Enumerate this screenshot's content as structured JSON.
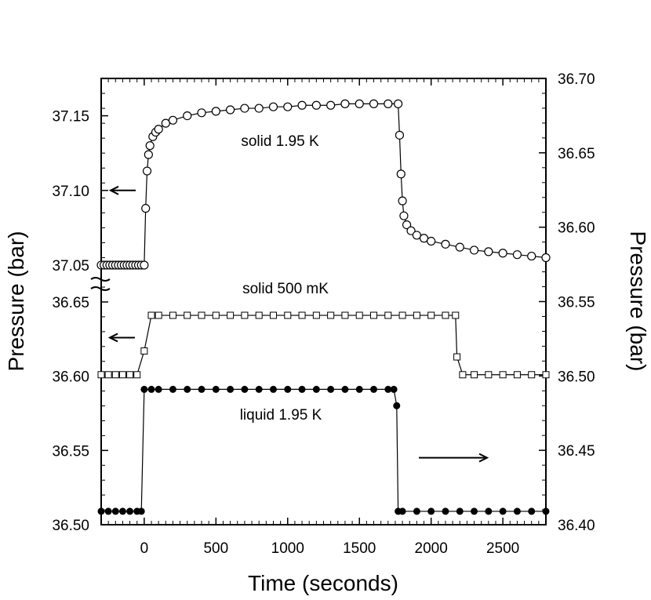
{
  "chart_data": {
    "type": "scatter",
    "xlabel": "Time (seconds)",
    "ylabel_left": "Pressure (bar)",
    "ylabel_right": "Pressure (bar)",
    "xlim": [
      -300,
      2800
    ],
    "x_ticks": [
      "0",
      "500",
      "1000",
      "1500",
      "2000",
      "2500"
    ],
    "x_tick_values": [
      0,
      500,
      1000,
      1500,
      2000,
      2500
    ],
    "left_axis": {
      "broken": true,
      "upper_segment": {
        "ticks": [
          "37.05",
          "37.10",
          "37.15"
        ],
        "values": [
          37.05,
          37.1,
          37.15
        ],
        "range": [
          37.05,
          37.175
        ]
      },
      "lower_segment": {
        "ticks": [
          "36.50",
          "36.55",
          "36.60",
          "36.65"
        ],
        "values": [
          36.5,
          36.55,
          36.6,
          36.65
        ],
        "range": [
          36.5,
          36.65
        ]
      }
    },
    "right_axis": {
      "ticks": [
        "36.40",
        "36.45",
        "36.50",
        "36.55",
        "36.60",
        "36.65",
        "36.70"
      ],
      "values": [
        36.4,
        36.45,
        36.5,
        36.55,
        36.6,
        36.65,
        36.7
      ],
      "range": [
        36.4,
        36.7
      ]
    },
    "annotations": [
      {
        "text": "solid 1.95 K"
      },
      {
        "text": "solid 500 mK"
      },
      {
        "text": "liquid 1.95 K"
      }
    ],
    "series": [
      {
        "label": "solid 1.95 K",
        "marker": "open-circle",
        "axis": "left-upper",
        "baseline": 37.05,
        "step_on": 0,
        "step_off": 1770,
        "points": [
          [
            -300,
            37.05
          ],
          [
            -280,
            37.05
          ],
          [
            -260,
            37.05
          ],
          [
            -240,
            37.05
          ],
          [
            -220,
            37.05
          ],
          [
            -200,
            37.05
          ],
          [
            -180,
            37.05
          ],
          [
            -160,
            37.05
          ],
          [
            -140,
            37.05
          ],
          [
            -120,
            37.05
          ],
          [
            -100,
            37.05
          ],
          [
            -80,
            37.05
          ],
          [
            -60,
            37.05
          ],
          [
            -40,
            37.05
          ],
          [
            -20,
            37.05
          ],
          [
            0,
            37.05
          ],
          [
            10,
            37.088
          ],
          [
            20,
            37.113
          ],
          [
            30,
            37.124
          ],
          [
            40,
            37.13
          ],
          [
            60,
            37.136
          ],
          [
            80,
            37.139
          ],
          [
            100,
            37.141
          ],
          [
            150,
            37.145
          ],
          [
            200,
            37.147
          ],
          [
            300,
            37.15
          ],
          [
            400,
            37.152
          ],
          [
            500,
            37.153
          ],
          [
            600,
            37.154
          ],
          [
            700,
            37.155
          ],
          [
            800,
            37.155
          ],
          [
            900,
            37.156
          ],
          [
            1000,
            37.156
          ],
          [
            1100,
            37.157
          ],
          [
            1200,
            37.157
          ],
          [
            1300,
            37.157
          ],
          [
            1400,
            37.158
          ],
          [
            1500,
            37.158
          ],
          [
            1600,
            37.158
          ],
          [
            1700,
            37.158
          ],
          [
            1770,
            37.158
          ],
          [
            1780,
            37.137
          ],
          [
            1790,
            37.111
          ],
          [
            1800,
            37.093
          ],
          [
            1810,
            37.083
          ],
          [
            1830,
            37.077
          ],
          [
            1860,
            37.073
          ],
          [
            1900,
            37.07
          ],
          [
            1950,
            37.068
          ],
          [
            2000,
            37.066
          ],
          [
            2100,
            37.064
          ],
          [
            2200,
            37.062
          ],
          [
            2300,
            37.06
          ],
          [
            2400,
            37.059
          ],
          [
            2500,
            37.058
          ],
          [
            2600,
            37.057
          ],
          [
            2700,
            37.056
          ],
          [
            2800,
            37.055
          ]
        ]
      },
      {
        "label": "solid 500 mK",
        "marker": "open-square",
        "axis": "left-lower",
        "baseline": 36.6,
        "plateau": 36.64,
        "step_on": 0,
        "step_off": 2170,
        "points": [
          [
            -300,
            36.601
          ],
          [
            -250,
            36.601
          ],
          [
            -200,
            36.601
          ],
          [
            -150,
            36.601
          ],
          [
            -100,
            36.601
          ],
          [
            -50,
            36.601
          ],
          [
            0,
            36.617
          ],
          [
            50,
            36.641
          ],
          [
            100,
            36.641
          ],
          [
            200,
            36.641
          ],
          [
            300,
            36.641
          ],
          [
            400,
            36.641
          ],
          [
            500,
            36.641
          ],
          [
            600,
            36.641
          ],
          [
            700,
            36.641
          ],
          [
            800,
            36.641
          ],
          [
            900,
            36.641
          ],
          [
            1000,
            36.641
          ],
          [
            1100,
            36.641
          ],
          [
            1200,
            36.641
          ],
          [
            1300,
            36.641
          ],
          [
            1400,
            36.641
          ],
          [
            1500,
            36.641
          ],
          [
            1600,
            36.641
          ],
          [
            1700,
            36.641
          ],
          [
            1800,
            36.641
          ],
          [
            1900,
            36.641
          ],
          [
            2000,
            36.641
          ],
          [
            2100,
            36.641
          ],
          [
            2170,
            36.641
          ],
          [
            2180,
            36.613
          ],
          [
            2220,
            36.601
          ],
          [
            2300,
            36.601
          ],
          [
            2400,
            36.601
          ],
          [
            2500,
            36.601
          ],
          [
            2600,
            36.601
          ],
          [
            2700,
            36.601
          ],
          [
            2800,
            36.601
          ]
        ]
      },
      {
        "label": "liquid 1.95 K",
        "marker": "filled-circle",
        "axis": "right",
        "baseline": 36.409,
        "plateau": 36.491,
        "step_on": 0,
        "step_off": 1760,
        "points": [
          [
            -300,
            36.409
          ],
          [
            -250,
            36.409
          ],
          [
            -200,
            36.409
          ],
          [
            -150,
            36.409
          ],
          [
            -100,
            36.409
          ],
          [
            -50,
            36.409
          ],
          [
            -20,
            36.409
          ],
          [
            0,
            36.491
          ],
          [
            50,
            36.491
          ],
          [
            100,
            36.491
          ],
          [
            200,
            36.491
          ],
          [
            300,
            36.491
          ],
          [
            400,
            36.491
          ],
          [
            500,
            36.491
          ],
          [
            600,
            36.491
          ],
          [
            700,
            36.491
          ],
          [
            800,
            36.491
          ],
          [
            900,
            36.491
          ],
          [
            1000,
            36.491
          ],
          [
            1100,
            36.491
          ],
          [
            1200,
            36.491
          ],
          [
            1300,
            36.491
          ],
          [
            1400,
            36.491
          ],
          [
            1500,
            36.491
          ],
          [
            1600,
            36.491
          ],
          [
            1700,
            36.491
          ],
          [
            1740,
            36.491
          ],
          [
            1760,
            36.48
          ],
          [
            1770,
            36.409
          ],
          [
            1800,
            36.409
          ],
          [
            1900,
            36.409
          ],
          [
            2000,
            36.409
          ],
          [
            2100,
            36.409
          ],
          [
            2200,
            36.409
          ],
          [
            2300,
            36.409
          ],
          [
            2400,
            36.409
          ],
          [
            2500,
            36.409
          ],
          [
            2600,
            36.409
          ],
          [
            2700,
            36.409
          ],
          [
            2800,
            36.409
          ]
        ]
      }
    ],
    "arrows": [
      {
        "series": "solid 1.95 K",
        "direction": "left"
      },
      {
        "series": "solid 500 mK",
        "direction": "left"
      },
      {
        "series": "liquid 1.95 K",
        "direction": "right"
      }
    ],
    "grid": false,
    "legend": "none"
  }
}
